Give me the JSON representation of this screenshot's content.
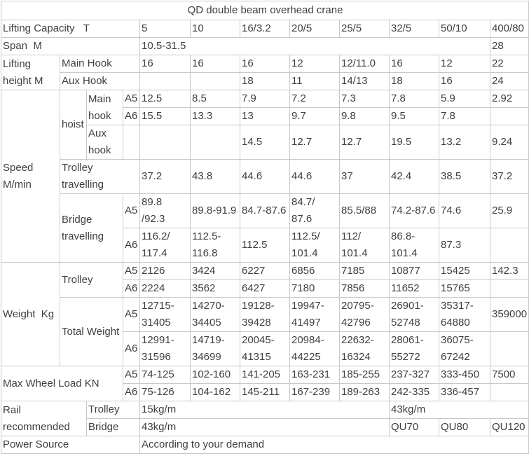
{
  "colors": {
    "border": "#c9c9c9",
    "text": "#3f3f3f",
    "background": "#ffffff"
  },
  "table": {
    "title": "QD double beam overhead crane",
    "rows": [
      [
        {
          "text": "QD double beam overhead crane",
          "colspan": 12,
          "center": true
        }
      ],
      [
        {
          "text": "Lifting Capacity   T",
          "colspan": 4
        },
        {
          "text": "5"
        },
        {
          "text": "10"
        },
        {
          "text": "16/3.2"
        },
        {
          "text": "20/5"
        },
        {
          "text": "25/5"
        },
        {
          "text": "32/5"
        },
        {
          "text": "50/10"
        },
        {
          "text": "400/80"
        }
      ],
      [
        {
          "text": "Span  M",
          "colspan": 4
        },
        {
          "text": "10.5-31.5",
          "colspan": 7
        },
        {
          "text": "28"
        }
      ],
      [
        {
          "text": "Lifting\nheight M",
          "rowspan": 2
        },
        {
          "text": "Main Hook",
          "colspan": 3
        },
        {
          "text": "16"
        },
        {
          "text": "16"
        },
        {
          "text": "16"
        },
        {
          "text": "12"
        },
        {
          "text": "12/11.0"
        },
        {
          "text": "16"
        },
        {
          "text": "12"
        },
        {
          "text": "22"
        }
      ],
      [
        {
          "text": "Aux Hook",
          "colspan": 3
        },
        {
          "text": ""
        },
        {
          "text": ""
        },
        {
          "text": "18"
        },
        {
          "text": "11"
        },
        {
          "text": "14/13"
        },
        {
          "text": "18"
        },
        {
          "text": "16"
        },
        {
          "text": "24"
        }
      ],
      [
        {
          "text": "Speed\nM/min",
          "rowspan": 6
        },
        {
          "text": "hoist",
          "rowspan": 3
        },
        {
          "text": "Main\nhook",
          "rowspan": 2
        },
        {
          "text": "A5"
        },
        {
          "text": "12.5"
        },
        {
          "text": "8.5"
        },
        {
          "text": "7.9"
        },
        {
          "text": "7.2"
        },
        {
          "text": "7.3"
        },
        {
          "text": "7.8"
        },
        {
          "text": "5.9"
        },
        {
          "text": "2.92"
        }
      ],
      [
        {
          "text": "A6"
        },
        {
          "text": "15.5"
        },
        {
          "text": "13.3"
        },
        {
          "text": "13"
        },
        {
          "text": "9.7"
        },
        {
          "text": "9.8"
        },
        {
          "text": "9.5"
        },
        {
          "text": "7.8"
        },
        {
          "text": ""
        }
      ],
      [
        {
          "text": "Aux\nhook"
        },
        {
          "text": ""
        },
        {
          "text": ""
        },
        {
          "text": ""
        },
        {
          "text": "14.5"
        },
        {
          "text": "12.7"
        },
        {
          "text": "12.7"
        },
        {
          "text": "19.5"
        },
        {
          "text": "13.2"
        },
        {
          "text": "9.24"
        }
      ],
      [
        {
          "text": "Trolley\ntravelling",
          "colspan": 3
        },
        {
          "text": "37.2"
        },
        {
          "text": "43.8"
        },
        {
          "text": "44.6"
        },
        {
          "text": "44.6"
        },
        {
          "text": "37"
        },
        {
          "text": "42.4"
        },
        {
          "text": "38.5"
        },
        {
          "text": "37.2"
        }
      ],
      [
        {
          "text": "Bridge\ntravelling",
          "colspan": 2,
          "rowspan": 2
        },
        {
          "text": "A5"
        },
        {
          "text": "89.8\n/92.3"
        },
        {
          "text": "89.8-91.9"
        },
        {
          "text": "84.7-87.6"
        },
        {
          "text": "84.7/\n87.6"
        },
        {
          "text": "85.5/88"
        },
        {
          "text": "74.2-87.6"
        },
        {
          "text": "74.6"
        },
        {
          "text": "25.9"
        }
      ],
      [
        {
          "text": "A6"
        },
        {
          "text": "116.2/\n117.4"
        },
        {
          "text": "112.5-\n116.8"
        },
        {
          "text": "112.5"
        },
        {
          "text": "112.5/\n101.4"
        },
        {
          "text": "112/\n101.4"
        },
        {
          "text": "86.8-\n101.4"
        },
        {
          "text": "87.3"
        },
        {
          "text": ""
        }
      ],
      [
        {
          "text": "Weight  Kg",
          "rowspan": 4
        },
        {
          "text": "Trolley",
          "colspan": 2,
          "rowspan": 2
        },
        {
          "text": "A5"
        },
        {
          "text": "2126"
        },
        {
          "text": "3424"
        },
        {
          "text": "6227"
        },
        {
          "text": "6856"
        },
        {
          "text": "7185"
        },
        {
          "text": "10877"
        },
        {
          "text": "15425"
        },
        {
          "text": "142.3"
        }
      ],
      [
        {
          "text": "A6"
        },
        {
          "text": "2224"
        },
        {
          "text": "3562"
        },
        {
          "text": "6427"
        },
        {
          "text": "7180"
        },
        {
          "text": "7856"
        },
        {
          "text": "11652"
        },
        {
          "text": "15765"
        },
        {
          "text": ""
        }
      ],
      [
        {
          "text": "Total Weight",
          "colspan": 2,
          "rowspan": 2
        },
        {
          "text": "A5"
        },
        {
          "text": "12715-\n31405"
        },
        {
          "text": "14270-\n34405"
        },
        {
          "text": "19128-\n39428"
        },
        {
          "text": "19947-\n41497"
        },
        {
          "text": "20795-\n42796"
        },
        {
          "text": "26901-\n52748"
        },
        {
          "text": "35317-\n64880"
        },
        {
          "text": "359000"
        }
      ],
      [
        {
          "text": "A6"
        },
        {
          "text": "12991-\n31596"
        },
        {
          "text": "14719-\n34699"
        },
        {
          "text": "20045-\n41315"
        },
        {
          "text": "20984-\n44225"
        },
        {
          "text": "22632-\n16324"
        },
        {
          "text": "28061-\n55272"
        },
        {
          "text": "36075-\n67242"
        },
        {
          "text": ""
        }
      ],
      [
        {
          "text": "Max Wheel Load KN",
          "colspan": 3,
          "rowspan": 2
        },
        {
          "text": "A5"
        },
        {
          "text": "74-125"
        },
        {
          "text": "102-160"
        },
        {
          "text": "141-205"
        },
        {
          "text": "163-231"
        },
        {
          "text": "185-255"
        },
        {
          "text": "237-327"
        },
        {
          "text": "333-450"
        },
        {
          "text": "7500"
        }
      ],
      [
        {
          "text": "A6"
        },
        {
          "text": "75-126"
        },
        {
          "text": "104-162"
        },
        {
          "text": "145-211"
        },
        {
          "text": "167-239"
        },
        {
          "text": "189-263"
        },
        {
          "text": "242-335"
        },
        {
          "text": "336-457"
        },
        {
          "text": ""
        }
      ],
      [
        {
          "text": "Rail\nrecommended",
          "colspan": 2,
          "rowspan": 2
        },
        {
          "text": "Trolley",
          "colspan": 2
        },
        {
          "text": "15kg/m",
          "colspan": 5
        },
        {
          "text": "43kg/m",
          "colspan": 3
        }
      ],
      [
        {
          "text": "Bridge",
          "colspan": 2
        },
        {
          "text": "43kg/m",
          "colspan": 5
        },
        {
          "text": "QU70"
        },
        {
          "text": "QU80"
        },
        {
          "text": "QU120"
        }
      ],
      [
        {
          "text": "Power Source",
          "colspan": 4
        },
        {
          "text": "According to your demand",
          "colspan": 8
        }
      ]
    ]
  }
}
